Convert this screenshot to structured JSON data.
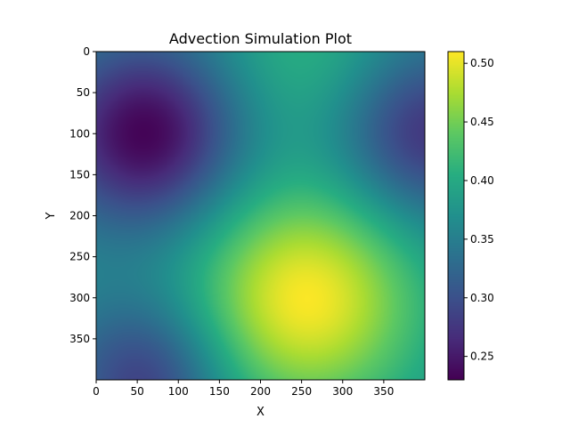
{
  "chart_data": {
    "type": "heatmap",
    "title": "Advection Simulation Plot",
    "xlabel": "X",
    "ylabel": "Y",
    "xlim": [
      0,
      400
    ],
    "ylim": [
      400,
      0
    ],
    "x_ticks": [
      0,
      50,
      100,
      150,
      200,
      250,
      300,
      350
    ],
    "y_ticks": [
      0,
      50,
      100,
      150,
      200,
      250,
      300,
      350
    ],
    "colormap": "viridis",
    "value_range": [
      0.23,
      0.51
    ],
    "colorbar_ticks": [
      0.25,
      0.3,
      0.35,
      0.4,
      0.45,
      0.5
    ],
    "field": {
      "baseline": 0.37,
      "features": [
        {
          "kind": "max",
          "x": 255,
          "y": 300,
          "value": 0.51
        },
        {
          "kind": "min",
          "x": 60,
          "y": 100,
          "value": 0.23
        },
        {
          "kind": "min",
          "x": 400,
          "y": 100,
          "value": 0.27
        },
        {
          "kind": "max",
          "x": 255,
          "y": 0,
          "value": 0.41
        },
        {
          "kind": "min",
          "x": 60,
          "y": 400,
          "value": 0.28
        }
      ]
    },
    "grid": false,
    "colorbar_position": "right"
  }
}
